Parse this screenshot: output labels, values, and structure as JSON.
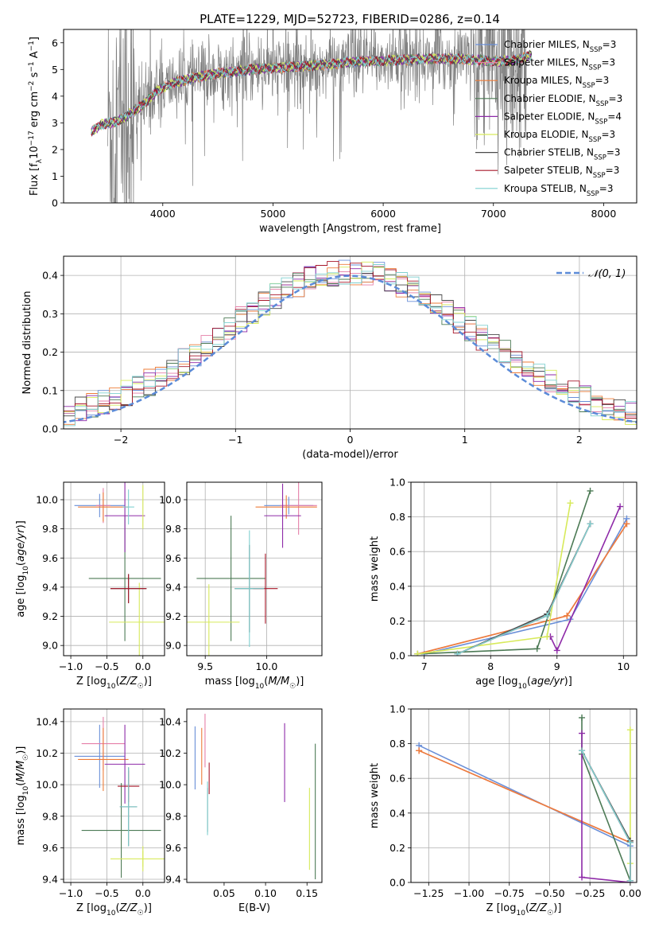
{
  "figure_title": "PLATE=1229, MJD=52723, FIBERID=0286, z=0.14",
  "colors": {
    "Chabrier MILES": "#6a8fd8",
    "Salpeter MILES": "#e57fa8",
    "Kroupa MILES": "#ed7d3a",
    "Chabrier ELODIE": "#4c7a55",
    "Salpeter ELODIE": "#8e2aa8",
    "Kroupa ELODIE": "#d7ea5a",
    "Chabrier STELIB": "#4a4a4a",
    "Salpeter STELIB": "#a8182a",
    "Kroupa STELIB": "#7fd0d0",
    "normal_curve": "#5b8bd8",
    "spectrum": "#808080"
  },
  "legend": [
    {
      "name": "Chabrier MILES",
      "label": "Chabrier MILES, N",
      "sub": "SSP",
      "n": "=3"
    },
    {
      "name": "Salpeter MILES",
      "label": "Salpeter MILES, N",
      "sub": "SSP",
      "n": "=3"
    },
    {
      "name": "Kroupa MILES",
      "label": "Kroupa MILES, N",
      "sub": "SSP",
      "n": "=3"
    },
    {
      "name": "Chabrier ELODIE",
      "label": "Chabrier ELODIE, N",
      "sub": "SSP",
      "n": "=3"
    },
    {
      "name": "Salpeter ELODIE",
      "label": "Salpeter ELODIE, N",
      "sub": "SSP",
      "n": "=4"
    },
    {
      "name": "Kroupa ELODIE",
      "label": "Kroupa ELODIE, N",
      "sub": "SSP",
      "n": "=3"
    },
    {
      "name": "Chabrier STELIB",
      "label": "Chabrier STELIB, N",
      "sub": "SSP",
      "n": "=3"
    },
    {
      "name": "Salpeter STELIB",
      "label": "Salpeter STELIB, N",
      "sub": "SSP",
      "n": "=3"
    },
    {
      "name": "Kroupa STELIB",
      "label": "Kroupa STELIB, N",
      "sub": "SSP",
      "n": "=3"
    }
  ],
  "chart_data": [
    {
      "id": "spectrum",
      "type": "line",
      "xlabel": "wavelength [Angstrom, rest frame]",
      "ylabel": "Flux [f_λ 10^-17 erg cm^-2 s^-1 A^-1]",
      "xlim": [
        3100,
        8300
      ],
      "ylim": [
        0,
        6.5
      ],
      "xticks": [
        4000,
        5000,
        6000,
        7000,
        8000
      ],
      "yticks": [
        0,
        1,
        2,
        3,
        4,
        5,
        6
      ],
      "grid": false,
      "legend_position": "right",
      "data_range": [
        3500,
        7300
      ],
      "model_range": [
        3350,
        7350
      ],
      "model_anchors": {
        "x": [
          3350,
          3450,
          3550,
          3650,
          3800,
          3950,
          4100,
          4300,
          4500,
          4800,
          5000,
          5200,
          5500,
          5800,
          6100,
          6400,
          6700,
          7000,
          7200,
          7350
        ],
        "y": [
          2.7,
          2.95,
          3.0,
          3.2,
          3.6,
          4.2,
          4.5,
          4.7,
          4.85,
          5.0,
          5.05,
          5.1,
          5.2,
          5.3,
          5.35,
          5.4,
          5.4,
          5.3,
          5.35,
          5.55
        ]
      }
    },
    {
      "id": "residuals",
      "type": "histogram",
      "xlabel": "(data-model)/error",
      "ylabel": "Normed distribution",
      "xlim": [
        -2.5,
        2.5
      ],
      "ylim": [
        0,
        0.45
      ],
      "xticks": [
        -2,
        -1,
        0,
        1,
        2
      ],
      "yticks": [
        0.0,
        0.1,
        0.2,
        0.3,
        0.4
      ],
      "grid": true,
      "legend_position": "upper right",
      "reference": {
        "label": "𝒩(0, 1)",
        "mean": 0,
        "sigma": 1
      },
      "bin_width": 0.1
    },
    {
      "id": "age_vs_Z",
      "type": "errorbar",
      "xlabel": "Z [log10(Z/Z☉)]",
      "ylabel": "age  [log10(age/yr)]",
      "xlim": [
        -1.1,
        0.3
      ],
      "ylim": [
        8.93,
        10.12
      ],
      "xticks": [
        -1.0,
        -0.5,
        0.0
      ],
      "yticks": [
        9.0,
        9.2,
        9.4,
        9.6,
        9.8,
        10.0
      ],
      "grid": true,
      "points": [
        {
          "series": "Chabrier MILES",
          "x": -0.6,
          "y": 9.96,
          "xerr": 0.35,
          "yerr": 0.08
        },
        {
          "series": "Salpeter MILES",
          "x": -0.55,
          "y": 9.96,
          "xerr": 0.1,
          "yerr": 0.12
        },
        {
          "series": "Kroupa MILES",
          "x": -0.55,
          "y": 9.95,
          "xerr": 0.35,
          "yerr": 0.1
        },
        {
          "series": "Chabrier ELODIE",
          "x": -0.25,
          "y": 9.46,
          "xerr": 0.5,
          "yerr": 0.43
        },
        {
          "series": "Salpeter ELODIE",
          "x": -0.25,
          "y": 9.89,
          "xerr": 0.28,
          "yerr": 0.25
        },
        {
          "series": "Kroupa ELODIE",
          "x": -0.05,
          "y": 9.16,
          "xerr": 0.42,
          "yerr": 0.27
        },
        {
          "series": "Chabrier STELIB",
          "x": -0.2,
          "y": 9.39,
          "xerr": 0.25,
          "yerr": 0.1
        },
        {
          "series": "Salpeter STELIB",
          "x": -0.2,
          "y": 9.39,
          "xerr": 0.25,
          "yerr": 0.1
        },
        {
          "series": "Kroupa STELIB",
          "x": -0.2,
          "y": 9.95,
          "xerr": 0.08,
          "yerr": 0.12
        },
        {
          "series": "Kroupa ELODIE",
          "x": 0.0,
          "y": 9.95,
          "xerr": 0.0,
          "yerr": 0.15
        }
      ]
    },
    {
      "id": "age_vs_mass",
      "type": "errorbar",
      "xlabel": "mass [log10(M/M☉)]",
      "xlim": [
        9.35,
        10.45
      ],
      "ylim": [
        8.93,
        10.12
      ],
      "xticks": [
        9.5,
        10.0
      ],
      "yticks": [
        9.0,
        9.2,
        9.4,
        9.6,
        9.8,
        10.0
      ],
      "grid": true,
      "points": [
        {
          "series": "Chabrier MILES",
          "x": 10.18,
          "y": 9.96,
          "xerr": 0.2,
          "yerr": 0.06
        },
        {
          "series": "Salpeter MILES",
          "x": 10.26,
          "y": 9.96,
          "xerr": 0.15,
          "yerr": 0.2
        },
        {
          "series": "Kroupa MILES",
          "x": 10.16,
          "y": 9.95,
          "xerr": 0.25,
          "yerr": 0.08
        },
        {
          "series": "Chabrier ELODIE",
          "x": 9.71,
          "y": 9.46,
          "xerr": 0.28,
          "yerr": 0.43
        },
        {
          "series": "Salpeter ELODIE",
          "x": 10.13,
          "y": 9.89,
          "xerr": 0.15,
          "yerr": 0.22
        },
        {
          "series": "Kroupa ELODIE",
          "x": 9.53,
          "y": 9.16,
          "xerr": 0.25,
          "yerr": 0.26
        },
        {
          "series": "Chabrier STELIB",
          "x": 9.86,
          "y": 9.39,
          "xerr": 0.12,
          "yerr": 0.3
        },
        {
          "series": "Salpeter STELIB",
          "x": 9.99,
          "y": 9.39,
          "xerr": 0.1,
          "yerr": 0.24
        },
        {
          "series": "Kroupa STELIB",
          "x": 9.86,
          "y": 9.39,
          "xerr": 0.12,
          "yerr": 0.4
        }
      ]
    },
    {
      "id": "mass_weight_vs_age",
      "type": "line",
      "xlabel": "age  [log10(age/yr)]",
      "ylabel": "mass weight",
      "xlim": [
        6.8,
        10.2
      ],
      "ylim": [
        0,
        1.0
      ],
      "xticks": [
        7,
        8,
        9,
        10
      ],
      "yticks": [
        0.0,
        0.2,
        0.4,
        0.6,
        0.8,
        1.0
      ],
      "grid": true,
      "series": [
        {
          "name": "Chabrier MILES",
          "x": [
            7.0,
            9.2,
            10.05
          ],
          "y": [
            0.01,
            0.21,
            0.79
          ]
        },
        {
          "name": "Salpeter MILES",
          "x": [
            6.9,
            9.15,
            10.05
          ],
          "y": [
            0.01,
            0.23,
            0.76
          ]
        },
        {
          "name": "Kroupa MILES",
          "x": [
            6.9,
            9.15,
            10.05
          ],
          "y": [
            0.01,
            0.23,
            0.76
          ]
        },
        {
          "name": "Chabrier ELODIE",
          "x": [
            6.9,
            8.7,
            9.5
          ],
          "y": [
            0.01,
            0.04,
            0.95
          ]
        },
        {
          "name": "Salpeter ELODIE",
          "x": [
            8.9,
            9.0,
            9.95
          ],
          "y": [
            0.11,
            0.03,
            0.86
          ]
        },
        {
          "name": "Kroupa ELODIE",
          "x": [
            6.9,
            8.85,
            9.2
          ],
          "y": [
            0.01,
            0.11,
            0.88
          ]
        },
        {
          "name": "Chabrier STELIB",
          "x": [
            7.5,
            8.85,
            9.5
          ],
          "y": [
            0.01,
            0.24,
            0.76
          ]
        },
        {
          "name": "Salpeter STELIB",
          "x": [
            7.5,
            8.85,
            9.5
          ],
          "y": [
            0.01,
            0.23,
            0.76
          ]
        },
        {
          "name": "Kroupa STELIB",
          "x": [
            7.5,
            8.85,
            9.5
          ],
          "y": [
            0.01,
            0.23,
            0.76
          ]
        }
      ]
    },
    {
      "id": "mass_vs_Z",
      "type": "errorbar",
      "xlabel": "Z [log10(Z/Z☉)]",
      "ylabel": "mass [log10(M/M☉)]",
      "xlim": [
        -1.1,
        0.3
      ],
      "ylim": [
        9.38,
        10.48
      ],
      "xticks": [
        -1.0,
        -0.5,
        0.0
      ],
      "yticks": [
        9.4,
        9.6,
        9.8,
        10.0,
        10.2,
        10.4
      ],
      "grid": true,
      "points": [
        {
          "series": "Chabrier MILES",
          "x": -0.6,
          "y": 10.18,
          "xerr": 0.35,
          "yerr": 0.2
        },
        {
          "series": "Salpeter MILES",
          "x": -0.55,
          "y": 10.26,
          "xerr": 0.3,
          "yerr": 0.17
        },
        {
          "series": "Kroupa MILES",
          "x": -0.55,
          "y": 10.16,
          "xerr": 0.35,
          "yerr": 0.2
        },
        {
          "series": "Chabrier ELODIE",
          "x": -0.3,
          "y": 9.71,
          "xerr": 0.55,
          "yerr": 0.3
        },
        {
          "series": "Salpeter ELODIE",
          "x": -0.25,
          "y": 10.13,
          "xerr": 0.28,
          "yerr": 0.25
        },
        {
          "series": "Kroupa ELODIE",
          "x": -0.0,
          "y": 9.53,
          "xerr": 0.45,
          "yerr": 0.08
        },
        {
          "series": "Chabrier STELIB",
          "x": -0.2,
          "y": 9.86,
          "xerr": 0.12,
          "yerr": 0.25
        },
        {
          "series": "Salpeter STELIB",
          "x": -0.2,
          "y": 9.99,
          "xerr": 0.15,
          "yerr": 0.1
        },
        {
          "series": "Kroupa STELIB",
          "x": -0.2,
          "y": 9.86,
          "xerr": 0.12,
          "yerr": 0.25
        },
        {
          "series": "Kroupa ELODIE",
          "x": 0.0,
          "y": 9.53,
          "xerr": 0.0,
          "yerr": 0.05
        }
      ]
    },
    {
      "id": "mass_vs_ebv",
      "type": "errorbar",
      "xlabel": "E(B-V)",
      "xlim": [
        0.005,
        0.168
      ],
      "ylim": [
        9.38,
        10.48
      ],
      "xticks": [
        0.05,
        0.1,
        0.15
      ],
      "yticks": [
        9.4,
        9.6,
        9.8,
        10.0,
        10.2,
        10.4
      ],
      "grid": false,
      "points": [
        {
          "series": "Chabrier MILES",
          "x": 0.015,
          "y": 10.17,
          "xerr": 0.0,
          "yerr": 0.2
        },
        {
          "series": "Salpeter MILES",
          "x": 0.027,
          "y": 10.28,
          "xerr": 0.0,
          "yerr": 0.17
        },
        {
          "series": "Kroupa MILES",
          "x": 0.023,
          "y": 10.18,
          "xerr": 0.0,
          "yerr": 0.18
        },
        {
          "series": "Chabrier ELODIE",
          "x": 0.16,
          "y": 9.83,
          "xerr": 0.0,
          "yerr": 0.43
        },
        {
          "series": "Salpeter ELODIE",
          "x": 0.123,
          "y": 10.14,
          "xerr": 0.0,
          "yerr": 0.25
        },
        {
          "series": "Kroupa ELODIE",
          "x": 0.153,
          "y": 9.72,
          "xerr": 0.0,
          "yerr": 0.26
        },
        {
          "series": "Chabrier STELIB",
          "x": 0.03,
          "y": 9.84,
          "xerr": 0.0,
          "yerr": 0.14
        },
        {
          "series": "Salpeter STELIB",
          "x": 0.032,
          "y": 10.04,
          "xerr": 0.0,
          "yerr": 0.1
        },
        {
          "series": "Kroupa STELIB",
          "x": 0.03,
          "y": 9.85,
          "xerr": 0.0,
          "yerr": 0.17
        }
      ]
    },
    {
      "id": "mass_weight_vs_Z",
      "type": "line",
      "xlabel": "Z [log10(Z/Z☉)]",
      "ylabel": "mass weight",
      "xlim": [
        -1.36,
        0.04
      ],
      "ylim": [
        0,
        1.0
      ],
      "xticks": [
        -1.25,
        -1.0,
        -0.75,
        -0.5,
        -0.25,
        0.0
      ],
      "yticks": [
        0.0,
        0.2,
        0.4,
        0.6,
        0.8,
        1.0
      ],
      "grid": true,
      "series": [
        {
          "name": "Chabrier MILES",
          "x": [
            -1.31,
            0.0,
            0.0
          ],
          "y": [
            0.79,
            0.21,
            0.24
          ]
        },
        {
          "name": "Salpeter MILES",
          "x": [
            -1.31,
            0.0,
            0.0
          ],
          "y": [
            0.76,
            0.23,
            0.24
          ]
        },
        {
          "name": "Kroupa MILES",
          "x": [
            -1.31,
            0.0,
            0.0
          ],
          "y": [
            0.76,
            0.23,
            0.24
          ]
        },
        {
          "name": "Chabrier ELODIE",
          "x": [
            -0.3,
            -0.3,
            0.0
          ],
          "y": [
            0.95,
            0.74,
            0.01
          ]
        },
        {
          "name": "Salpeter ELODIE",
          "x": [
            -0.3,
            -0.3,
            0.0
          ],
          "y": [
            0.86,
            0.03,
            0.0
          ]
        },
        {
          "name": "Kroupa ELODIE",
          "x": [
            0.0,
            0.0,
            0.0
          ],
          "y": [
            0.88,
            0.11,
            0.01
          ]
        },
        {
          "name": "Chabrier STELIB",
          "x": [
            -0.3,
            0.0,
            0.0
          ],
          "y": [
            0.76,
            0.24,
            0.01
          ]
        },
        {
          "name": "Salpeter STELIB",
          "x": [
            -0.3,
            0.0,
            0.0
          ],
          "y": [
            0.76,
            0.23,
            0.01
          ]
        },
        {
          "name": "Kroupa STELIB",
          "x": [
            -0.3,
            0.0,
            0.0
          ],
          "y": [
            0.76,
            0.23,
            0.01
          ]
        }
      ]
    }
  ]
}
